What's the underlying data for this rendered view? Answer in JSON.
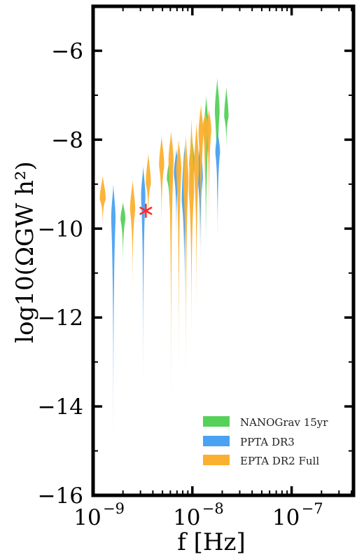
{
  "chart_data": {
    "type": "violin",
    "title": "",
    "xlabel": "f [Hz]",
    "ylabel": "log10(ΩGW h²)",
    "xscale": "log",
    "xlim": [
      1e-09,
      4.2e-07
    ],
    "ylim": [
      -16,
      -5
    ],
    "xticks": [
      {
        "value": 1e-09,
        "base": "10",
        "exp": "−9"
      },
      {
        "value": 1e-08,
        "base": "10",
        "exp": "−8"
      },
      {
        "value": 1e-07,
        "base": "10",
        "exp": "−7"
      }
    ],
    "yticks": [
      -16,
      -14,
      -12,
      -10,
      -8,
      -6
    ],
    "ytick_labels": [
      "−16",
      "−14",
      "−12",
      "−10",
      "−8",
      "−6"
    ],
    "legend_position": "lower-right",
    "series": [
      {
        "name": "NANOGrav 15yr",
        "color": "#55d15a",
        "violins": [
          {
            "f": 2e-09,
            "lo": -10.9,
            "hi": -9.4,
            "mode": -9.8,
            "half_width": 0.025
          },
          {
            "f": 5.9e-09,
            "lo": -9.7,
            "hi": -8.4,
            "mode": -8.9,
            "half_width": 0.028
          },
          {
            "f": 9.9e-09,
            "lo": -9.9,
            "hi": -7.9,
            "mode": -8.6,
            "half_width": 0.028
          },
          {
            "f": 1.38e-08,
            "lo": -10.6,
            "hi": -7.0,
            "mode": -7.9,
            "half_width": 0.026
          },
          {
            "f": 1.78e-08,
            "lo": -10.4,
            "hi": -6.6,
            "mode": -7.4,
            "half_width": 0.024
          },
          {
            "f": 2.2e-08,
            "lo": -8.3,
            "hi": -6.8,
            "mode": -7.5,
            "half_width": 0.022
          }
        ]
      },
      {
        "name": "PPTA DR3",
        "color": "#4aa2f2",
        "violins": [
          {
            "f": 1.6e-09,
            "lo": -15.0,
            "hi": -9.0,
            "mode": -9.8,
            "half_width": 0.022
          },
          {
            "f": 3.2e-09,
            "lo": -13.6,
            "hi": -8.6,
            "mode": -9.3,
            "half_width": 0.022
          },
          {
            "f": 6.9e-09,
            "lo": -10.3,
            "hi": -8.2,
            "mode": -8.8,
            "half_width": 0.025
          },
          {
            "f": 8.3e-09,
            "lo": -11.5,
            "hi": -8.1,
            "mode": -9.4,
            "half_width": 0.026
          },
          {
            "f": 1.2e-08,
            "lo": -10.8,
            "hi": -7.9,
            "mode": -8.9,
            "half_width": 0.026
          },
          {
            "f": 1.8e-08,
            "lo": -10.2,
            "hi": -7.8,
            "mode": -8.3,
            "half_width": 0.024
          }
        ]
      },
      {
        "name": "EPTA DR2 Full",
        "color": "#fbb030",
        "violins": [
          {
            "f": 1.25e-09,
            "lo": -10.0,
            "hi": -8.8,
            "mode": -9.35,
            "half_width": 0.03
          },
          {
            "f": 2.5e-09,
            "lo": -11.4,
            "hi": -8.9,
            "mode": -9.6,
            "half_width": 0.026
          },
          {
            "f": 3.6e-09,
            "lo": -9.9,
            "hi": -8.3,
            "mode": -9.0,
            "half_width": 0.026
          },
          {
            "f": 4.9e-09,
            "lo": -10.1,
            "hi": -7.9,
            "mode": -8.6,
            "half_width": 0.026
          },
          {
            "f": 6.1e-09,
            "lo": -14.0,
            "hi": -7.8,
            "mode": -8.5,
            "half_width": 0.026
          },
          {
            "f": 7.3e-09,
            "lo": -13.2,
            "hi": -8.0,
            "mode": -8.7,
            "half_width": 0.026
          },
          {
            "f": 8.6e-09,
            "lo": -13.4,
            "hi": -7.9,
            "mode": -9.0,
            "half_width": 0.026
          },
          {
            "f": 9.8e-09,
            "lo": -12.6,
            "hi": -7.5,
            "mode": -9.2,
            "half_width": 0.026
          },
          {
            "f": 1.1e-08,
            "lo": -12.0,
            "hi": -7.6,
            "mode": -8.7,
            "half_width": 0.026
          },
          {
            "f": 1.22e-08,
            "lo": -11.0,
            "hi": -7.2,
            "mode": -7.9,
            "half_width": 0.025
          },
          {
            "f": 1.35e-08,
            "lo": -10.3,
            "hi": -7.4,
            "mode": -7.7,
            "half_width": 0.025
          },
          {
            "f": 1.47e-08,
            "lo": -10.0,
            "hi": -7.3,
            "mode": -7.8,
            "half_width": 0.024
          }
        ]
      }
    ],
    "marker": {
      "f": 3.4e-09,
      "y": -9.6,
      "symbol": "*",
      "color": "#ff2a2a"
    }
  }
}
